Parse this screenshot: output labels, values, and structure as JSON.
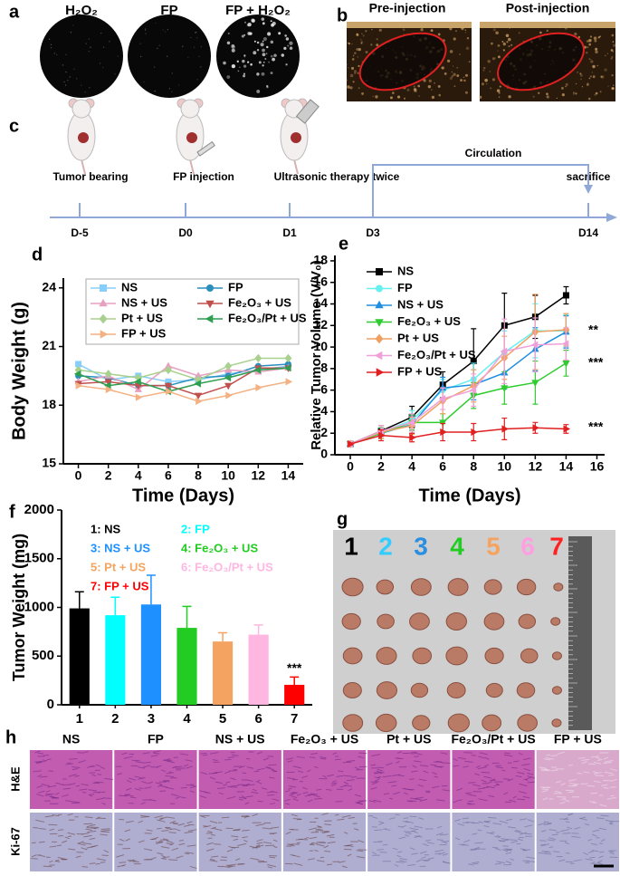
{
  "panel_labels": [
    "a",
    "b",
    "c",
    "d",
    "e",
    "f",
    "g",
    "h"
  ],
  "panel_a": {
    "labels": [
      "H₂O₂",
      "FP",
      "FP + H₂O₂"
    ]
  },
  "panel_b": {
    "labels": [
      "Pre-injection",
      "Post-injection"
    ]
  },
  "timeline": {
    "events": [
      "Tumor bearing",
      "FP injection",
      "Ultrasonic therapy twice",
      "sacrifice"
    ],
    "days": [
      "D-5",
      "D0",
      "D1",
      "D3",
      "D14"
    ],
    "circulation": "Circulation"
  },
  "chart_data": [
    {
      "type": "line",
      "x": [
        0,
        2,
        4,
        6,
        8,
        10,
        12,
        14
      ],
      "xlim": [
        -1,
        15
      ],
      "xticks": [
        0,
        2,
        4,
        6,
        8,
        10,
        12,
        14
      ],
      "ylim": [
        15,
        24.5
      ],
      "yticks": [
        15,
        18,
        21,
        24
      ],
      "x_label": "Time (Days)",
      "y_label": "Body Weight (g)",
      "series": [
        {
          "name": "NS",
          "color": "#87cefa",
          "marker": "square",
          "values": [
            20.1,
            19.3,
            19.5,
            19.2,
            19.3,
            19.6,
            19.8,
            20.0
          ]
        },
        {
          "name": "FP",
          "color": "#2a8fbd",
          "marker": "circle",
          "values": [
            19.5,
            19.4,
            19.0,
            19.0,
            19.4,
            19.5,
            20.0,
            20.1
          ]
        },
        {
          "name": "NS + US",
          "color": "#e8a0c0",
          "marker": "triangle",
          "values": [
            19.2,
            19.5,
            18.8,
            20.0,
            19.5,
            19.8,
            19.7,
            19.9
          ]
        },
        {
          "name": "Fe₂O₃ + US",
          "color": "#c0504d",
          "marker": "triangle-down",
          "values": [
            19.1,
            19.2,
            19.0,
            19.0,
            18.5,
            19.0,
            19.9,
            19.9
          ]
        },
        {
          "name": "Pt + US",
          "color": "#a9d18e",
          "marker": "diamond",
          "values": [
            19.8,
            19.6,
            19.4,
            19.8,
            19.3,
            20.0,
            20.4,
            20.4
          ]
        },
        {
          "name": "Fe₂O₃/Pt + US",
          "color": "#2e9e4f",
          "marker": "left",
          "values": [
            19.6,
            19.0,
            19.2,
            18.7,
            19.1,
            19.4,
            19.8,
            19.9
          ]
        },
        {
          "name": "FP + US",
          "color": "#f4b183",
          "marker": "right",
          "values": [
            19.0,
            18.8,
            18.4,
            18.7,
            18.2,
            18.5,
            18.9,
            19.2
          ]
        }
      ]
    },
    {
      "type": "line",
      "x": [
        0,
        2,
        4,
        6,
        8,
        10,
        12,
        14
      ],
      "xlim": [
        -1,
        16.5
      ],
      "xticks": [
        0,
        2,
        4,
        6,
        8,
        10,
        12,
        14,
        16
      ],
      "ylim": [
        0,
        18.5
      ],
      "yticks": [
        0,
        2,
        4,
        6,
        8,
        10,
        12,
        14,
        16,
        18
      ],
      "x_label": "Time (Days)",
      "y_label": "Relative Tumor Volume (V/V₀)",
      "annotations": [
        "**",
        "***",
        "***"
      ],
      "series": [
        {
          "name": "NS",
          "color": "#000000",
          "marker": "square",
          "values": [
            1,
            2.2,
            3.5,
            6.5,
            8.7,
            12.0,
            12.8,
            14.8
          ],
          "errors": [
            0.2,
            0.5,
            1.0,
            1.2,
            3.0,
            3.0,
            2.0,
            0.8
          ]
        },
        {
          "name": "FP",
          "color": "#66f0f0",
          "marker": "circle",
          "values": [
            1,
            2.1,
            3.2,
            6.0,
            7.0,
            9.5,
            11.5,
            11.5
          ],
          "errors": [
            0.2,
            0.6,
            0.9,
            1.0,
            1.5,
            2.0,
            2.5,
            1.5
          ]
        },
        {
          "name": "NS + US",
          "color": "#1f8fe0",
          "marker": "triangle",
          "values": [
            1,
            2.0,
            2.8,
            6.2,
            6.5,
            7.6,
            9.8,
            11.4
          ],
          "errors": [
            0.2,
            0.5,
            0.8,
            1.0,
            1.4,
            1.5,
            2.0,
            1.5
          ]
        },
        {
          "name": "Fe₂O₃ + US",
          "color": "#2ecc2e",
          "marker": "triangle-down",
          "values": [
            1,
            2.0,
            3.0,
            3.0,
            5.5,
            6.2,
            6.7,
            8.5
          ],
          "errors": [
            0.2,
            0.5,
            0.7,
            0.8,
            1.2,
            1.5,
            2.0,
            1.2
          ]
        },
        {
          "name": "Pt + US",
          "color": "#f0a060",
          "marker": "diamond",
          "values": [
            1,
            2.1,
            2.7,
            5.0,
            6.4,
            9.0,
            11.4,
            11.6
          ],
          "errors": [
            0.2,
            0.6,
            0.8,
            1.2,
            1.5,
            2.0,
            3.5,
            1.5
          ]
        },
        {
          "name": "Fe₂O₃/Pt + US",
          "color": "#f0a0d8",
          "marker": "left",
          "values": [
            1,
            2.2,
            3.0,
            5.2,
            6.0,
            9.6,
            10.2,
            10.3
          ],
          "errors": [
            0.2,
            0.5,
            0.8,
            1.0,
            1.5,
            3.0,
            2.5,
            1.5
          ]
        },
        {
          "name": "FP + US",
          "color": "#e02020",
          "marker": "right",
          "values": [
            1,
            1.8,
            1.6,
            2.1,
            2.1,
            2.4,
            2.5,
            2.4
          ],
          "errors": [
            0.1,
            0.5,
            0.4,
            0.8,
            0.8,
            1.0,
            0.5,
            0.4
          ]
        }
      ]
    },
    {
      "type": "bar",
      "categories": [
        "1",
        "2",
        "3",
        "4",
        "5",
        "6",
        "7"
      ],
      "values": [
        990,
        920,
        1030,
        790,
        650,
        720,
        205
      ],
      "errors": [
        170,
        185,
        300,
        220,
        90,
        100,
        80
      ],
      "colors": [
        "#000000",
        "#00ffff",
        "#1e90ff",
        "#22cc22",
        "#f4a460",
        "#ffb6e1",
        "#ff0000"
      ],
      "ylim": [
        0,
        2000
      ],
      "yticks": [
        0,
        500,
        1000,
        1500,
        2000
      ],
      "y_label": "Tumor Weight (mg)",
      "annotations": [
        "***"
      ],
      "legend": [
        "1: NS",
        "2: FP",
        "3: NS + US",
        "4: Fe₂O₃ + US",
        "5: Pt + US",
        "6: Fe₂O₃/Pt + US",
        "7: FP + US"
      ]
    }
  ],
  "panel_g": {
    "labels": [
      "1",
      "2",
      "3",
      "4",
      "5",
      "6",
      "7"
    ],
    "colors": [
      "#000000",
      "#33ccff",
      "#2a8fe0",
      "#22cc22",
      "#f4a460",
      "#ff9ee0",
      "#ff2020"
    ]
  },
  "panel_h": {
    "columns": [
      "NS",
      "FP",
      "NS + US",
      "Fe₂O₃ + US",
      "Pt + US",
      "Fe₂O₃/Pt + US",
      "FP + US"
    ],
    "rows": [
      "H&E",
      "Ki-67"
    ]
  }
}
